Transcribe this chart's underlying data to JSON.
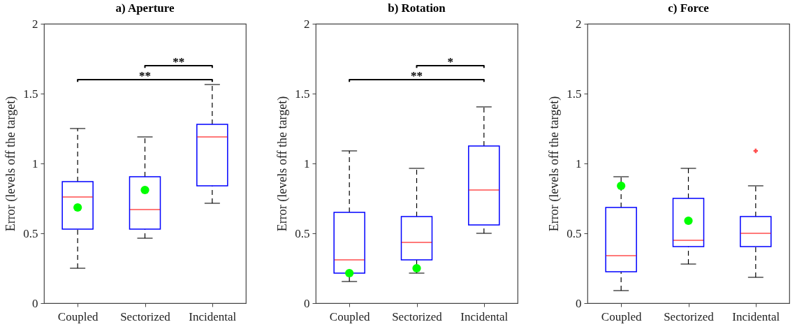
{
  "chart_data": [
    {
      "type": "box",
      "title": "a) Aperture",
      "ylabel": "Error (levels off the target)",
      "categories": [
        "Coupled",
        "Sectorized",
        "Incidental"
      ],
      "ylim": [
        0,
        2
      ],
      "yticks": [
        0,
        0.5,
        1,
        1.5,
        2
      ],
      "series": [
        {
          "type": "box",
          "color": "#0000ff",
          "boxes": [
            {
              "low": 0.25,
              "q1": 0.53,
              "median": 0.76,
              "q3": 0.87,
              "high": 1.25
            },
            {
              "low": 0.465,
              "q1": 0.53,
              "median": 0.67,
              "q3": 0.905,
              "high": 1.19
            },
            {
              "low": 0.715,
              "q1": 0.84,
              "median": 1.19,
              "q3": 1.28,
              "high": 1.565
            }
          ]
        },
        {
          "type": "scatter",
          "color": "#00ff00",
          "x": [
            "Coupled",
            "Sectorized"
          ],
          "values": [
            0.685,
            0.81
          ]
        }
      ],
      "annotations": [
        "**",
        "**"
      ]
    },
    {
      "type": "box",
      "title": "b) Rotation",
      "ylabel": "Error (levels off the target)",
      "categories": [
        "Coupled",
        "Sectorized",
        "Incidental"
      ],
      "ylim": [
        0,
        2
      ],
      "yticks": [
        0,
        0.5,
        1,
        1.5,
        2
      ],
      "series": [
        {
          "type": "box",
          "color": "#0000ff",
          "boxes": [
            {
              "low": 0.155,
              "q1": 0.215,
              "median": 0.31,
              "q3": 0.65,
              "high": 1.09
            },
            {
              "low": 0.215,
              "q1": 0.31,
              "median": 0.435,
              "q3": 0.62,
              "high": 0.965
            },
            {
              "low": 0.5,
              "q1": 0.56,
              "median": 0.81,
              "q3": 1.125,
              "high": 1.405
            }
          ]
        },
        {
          "type": "scatter",
          "color": "#00ff00",
          "x": [
            "Coupled",
            "Sectorized"
          ],
          "values": [
            0.215,
            0.25
          ]
        }
      ],
      "annotations": [
        "*",
        "**"
      ]
    },
    {
      "type": "box",
      "title": "c) Force",
      "ylabel": "Error (levels off the target)",
      "categories": [
        "Coupled",
        "Sectorized",
        "Incidental"
      ],
      "ylim": [
        0,
        2
      ],
      "yticks": [
        0,
        0.5,
        1,
        1.5,
        2
      ],
      "series": [
        {
          "type": "box",
          "color": "#0000ff",
          "boxes": [
            {
              "low": 0.09,
              "q1": 0.225,
              "median": 0.34,
              "q3": 0.685,
              "high": 0.905
            },
            {
              "low": 0.28,
              "q1": 0.405,
              "median": 0.45,
              "q3": 0.75,
              "high": 0.965
            },
            {
              "low": 0.185,
              "q1": 0.405,
              "median": 0.5,
              "q3": 0.62,
              "high": 0.84,
              "outliers": [
                1.09
              ]
            }
          ]
        },
        {
          "type": "scatter",
          "color": "#00ff00",
          "x": [
            "Coupled",
            "Sectorized"
          ],
          "values": [
            0.84,
            0.59
          ]
        }
      ]
    }
  ]
}
